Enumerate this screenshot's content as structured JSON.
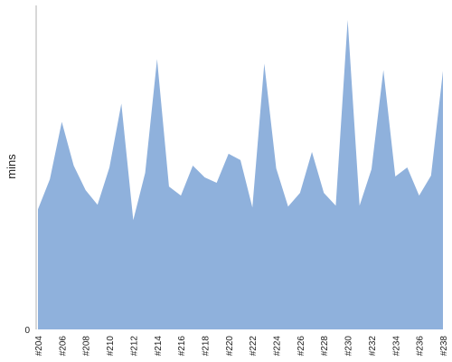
{
  "chart_data": {
    "type": "area",
    "title": "",
    "xlabel": "",
    "ylabel": "mins",
    "ylim": [
      0,
      340
    ],
    "y_tick_labels": [
      "0"
    ],
    "x": [
      "#204",
      "#205",
      "#206",
      "#207",
      "#208",
      "#209",
      "#210",
      "#211",
      "#212",
      "#213",
      "#214",
      "#215",
      "#216",
      "#217",
      "#218",
      "#219",
      "#220",
      "#221",
      "#222",
      "#223",
      "#224",
      "#225",
      "#226",
      "#227",
      "#228",
      "#229",
      "#230",
      "#231",
      "#232",
      "#233",
      "#234",
      "#235",
      "#236",
      "#237",
      "#238"
    ],
    "x_tick_labels": [
      "#204",
      "#206",
      "#208",
      "#210",
      "#212",
      "#214",
      "#216",
      "#218",
      "#220",
      "#222",
      "#224",
      "#226",
      "#228",
      "#230",
      "#232",
      "#234",
      "#236",
      "#238"
    ],
    "series": [
      {
        "values": [
          132,
          165,
          228,
          180,
          153,
          137,
          178,
          248,
          120,
          172,
          297,
          157,
          147,
          180,
          167,
          161,
          193,
          186,
          134,
          292,
          177,
          135,
          150,
          195,
          150,
          136,
          340,
          136,
          176,
          285,
          168,
          178,
          147,
          169,
          284
        ],
        "color": "#8fb1dc"
      }
    ],
    "grid": false,
    "legend": "none"
  }
}
